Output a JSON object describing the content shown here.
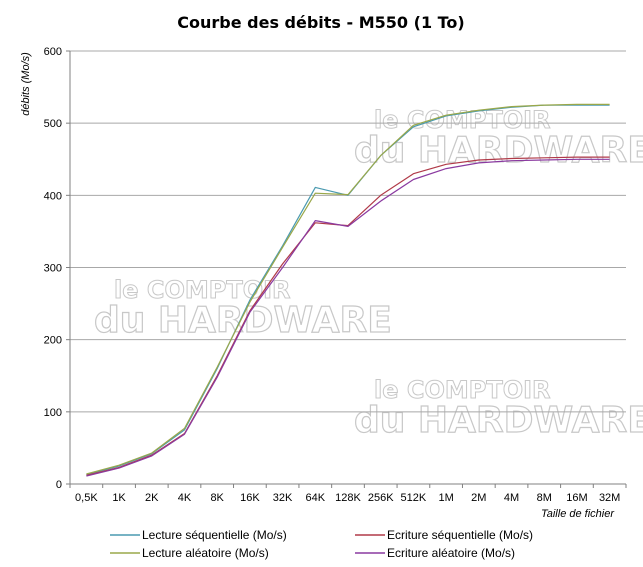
{
  "chart_data": {
    "type": "line",
    "title": "Courbe des débits - M550 (1 To)",
    "xlabel": "Taille de fichier",
    "ylabel": "débits (Mo/s)",
    "ylim": [
      0,
      600
    ],
    "yticks": [
      0,
      100,
      200,
      300,
      400,
      500,
      600
    ],
    "categories": [
      "0,5K",
      "1K",
      "2K",
      "4K",
      "8K",
      "16K",
      "32K",
      "64K",
      "128K",
      "256K",
      "512K",
      "1M",
      "2M",
      "4M",
      "8M",
      "16M",
      "32M"
    ],
    "legend_position": "bottom",
    "grid": "horizontal",
    "watermark": {
      "line1": "le COMPTOIR",
      "line2": "du HARDWARE"
    },
    "series": [
      {
        "name": "Lecture séquentielle (Mo/s)",
        "color": "#4a9ab0",
        "values": [
          13,
          25,
          42,
          75,
          160,
          255,
          330,
          411,
          400,
          455,
          495,
          510,
          517,
          522,
          525,
          525,
          525
        ]
      },
      {
        "name": "Ecriture séquentielle (Mo/s)",
        "color": "#b03a48",
        "values": [
          12,
          23,
          40,
          70,
          150,
          240,
          305,
          362,
          358,
          400,
          430,
          443,
          449,
          451,
          452,
          453,
          453
        ]
      },
      {
        "name": "Lecture aléatoire (Mo/s)",
        "color": "#9aa84a",
        "values": [
          14,
          26,
          43,
          77,
          162,
          252,
          328,
          403,
          401,
          455,
          497,
          511,
          518,
          523,
          525,
          526,
          526
        ]
      },
      {
        "name": "Ecriture aléatoire (Mo/s)",
        "color": "#8a3aa0",
        "values": [
          11,
          22,
          39,
          69,
          148,
          238,
          300,
          365,
          357,
          392,
          422,
          437,
          445,
          448,
          449,
          450,
          450
        ]
      }
    ]
  }
}
